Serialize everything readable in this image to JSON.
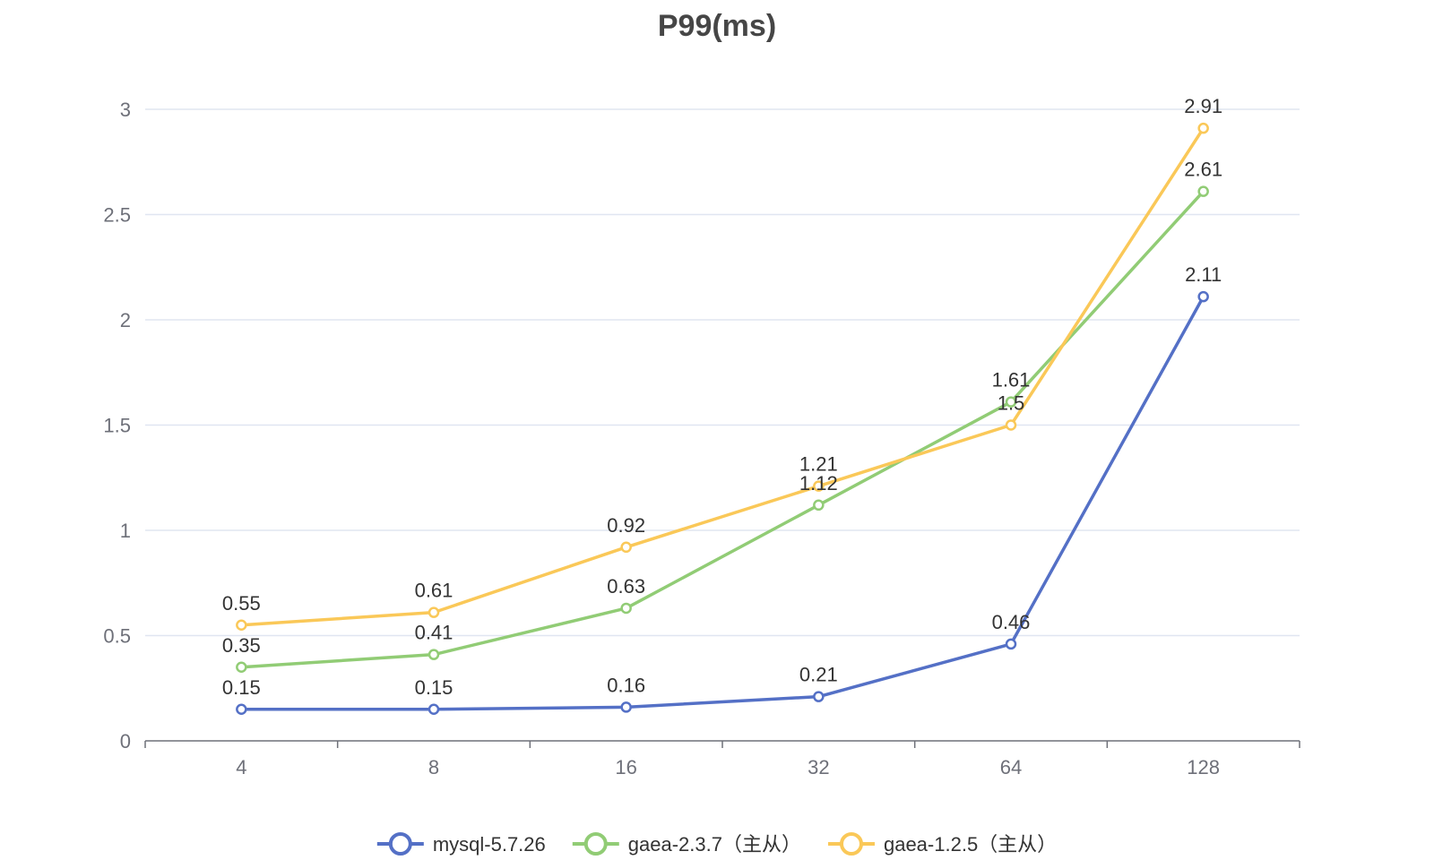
{
  "chart_data": {
    "type": "line",
    "title": "P99(ms)",
    "xlabel": "",
    "ylabel": "",
    "categories": [
      "4",
      "8",
      "16",
      "32",
      "64",
      "128"
    ],
    "ylim": [
      0,
      3
    ],
    "yticks": [
      "0",
      "0.5",
      "1",
      "1.5",
      "2",
      "2.5",
      "3"
    ],
    "grid": true,
    "legend_position": "bottom",
    "series": [
      {
        "name": "mysql-5.7.26",
        "color": "#5470c6",
        "values": [
          0.15,
          0.15,
          0.16,
          0.21,
          0.46,
          2.11
        ],
        "labels": [
          "0.15",
          "0.15",
          "0.16",
          "0.21",
          "0.46",
          "2.11"
        ]
      },
      {
        "name": "gaea-2.3.7（主从）",
        "color": "#91cc75",
        "values": [
          0.35,
          0.41,
          0.63,
          1.12,
          1.61,
          2.61
        ],
        "labels": [
          "0.35",
          "0.41",
          "0.63",
          "1.12",
          "1.61",
          "2.61"
        ]
      },
      {
        "name": "gaea-1.2.5（主从）",
        "color": "#fac858",
        "values": [
          0.55,
          0.61,
          0.92,
          1.21,
          1.5,
          2.91
        ],
        "labels": [
          "0.55",
          "0.61",
          "0.92",
          "1.21",
          "1.5",
          "2.91"
        ]
      }
    ]
  },
  "colors": {
    "grid": "#e0e6f1",
    "axis": "#6e7079",
    "title": "#464646",
    "label": "#333333"
  }
}
